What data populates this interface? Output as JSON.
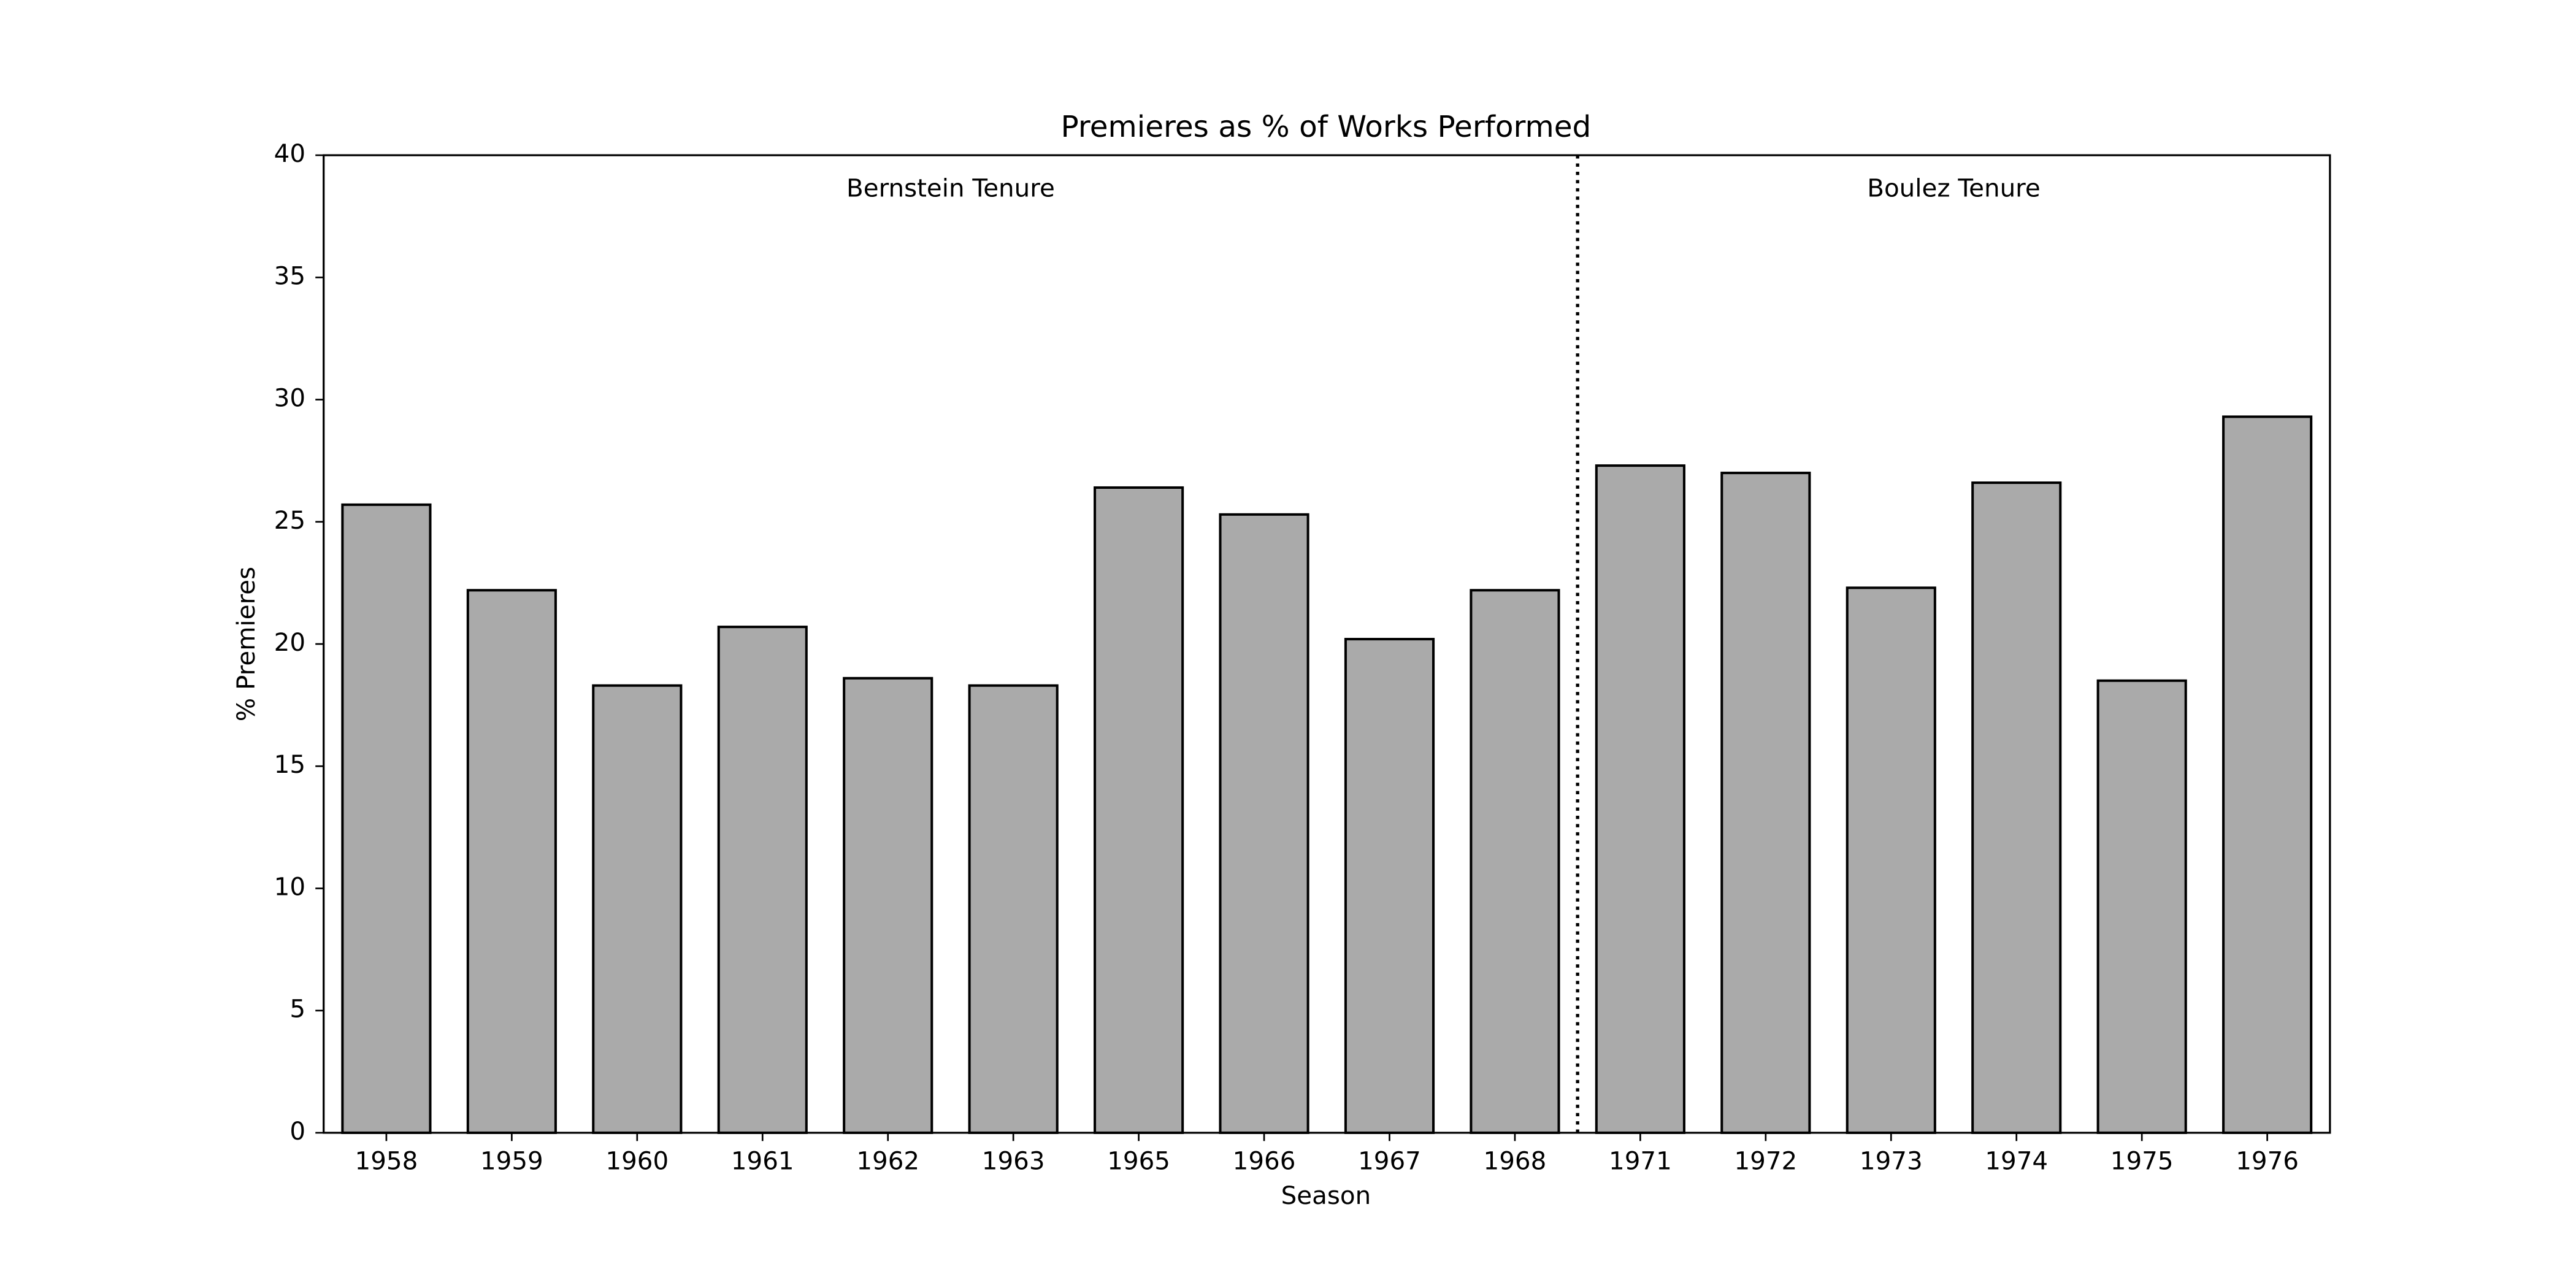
{
  "chart_data": {
    "type": "bar",
    "title": "Premieres as % of Works Performed",
    "x_label": "Season",
    "y_label": "% Premieres",
    "categories": [
      "1958",
      "1959",
      "1960",
      "1961",
      "1962",
      "1963",
      "1965",
      "1966",
      "1967",
      "1968",
      "1971",
      "1972",
      "1973",
      "1974",
      "1975",
      "1976"
    ],
    "values": [
      25.7,
      22.2,
      18.3,
      20.7,
      18.6,
      18.3,
      26.4,
      25.3,
      20.2,
      22.2,
      27.3,
      27.0,
      22.3,
      26.6,
      18.5,
      29.3
    ],
    "color": "#aaaaaa",
    "ylim": [
      0,
      40
    ],
    "yticks": [
      0,
      5,
      10,
      15,
      20,
      25,
      30,
      35,
      40
    ],
    "grid": false,
    "annotations": [
      "Bernstein Tenure",
      "Boulez Tenure"
    ]
  }
}
